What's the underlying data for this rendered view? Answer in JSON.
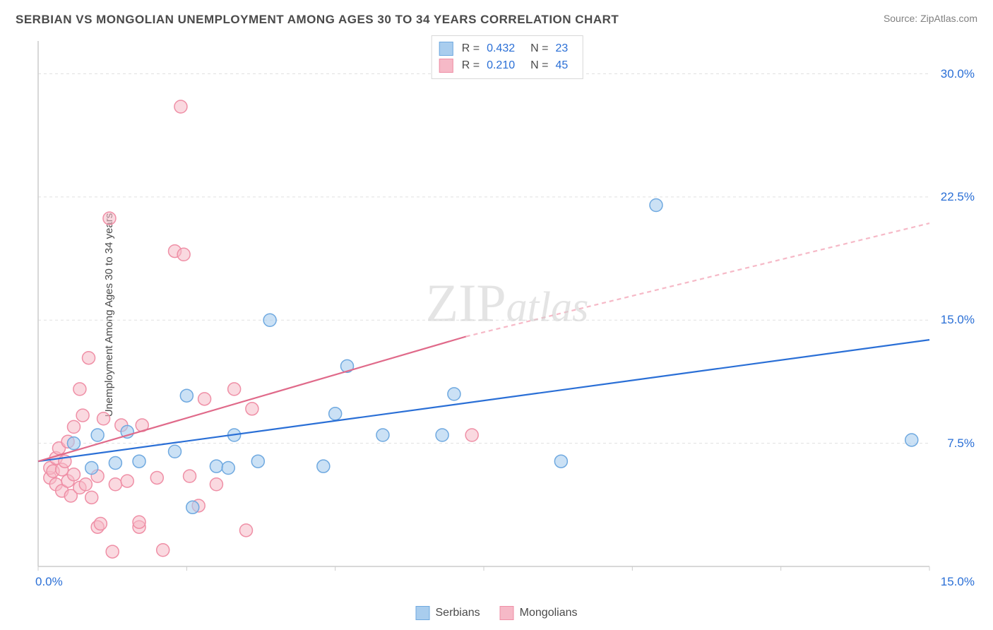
{
  "header": {
    "title": "SERBIAN VS MONGOLIAN UNEMPLOYMENT AMONG AGES 30 TO 34 YEARS CORRELATION CHART",
    "source": "Source: ZipAtlas.com"
  },
  "ylabel": "Unemployment Among Ages 30 to 34 years",
  "watermark": {
    "part1": "ZIP",
    "part2": "atlas"
  },
  "chart": {
    "type": "scatter",
    "xlim": [
      0,
      15
    ],
    "ylim": [
      0,
      32
    ],
    "x_ticks": [
      0,
      2.5,
      5,
      7.5,
      10,
      12.5,
      15
    ],
    "x_tick_labels_shown": {
      "0": "0.0%",
      "15": "15.0%"
    },
    "y_ticks": [
      7.5,
      15.0,
      22.5,
      30.0
    ],
    "y_tick_labels": [
      "7.5%",
      "15.0%",
      "22.5%",
      "30.0%"
    ],
    "grid_color": "#e0e0e0",
    "axis_color": "#cccccc",
    "background_color": "#ffffff",
    "marker_radius": 9,
    "marker_stroke_width": 1.5,
    "trend_line_width": 2.2,
    "series": [
      {
        "name": "Serbians",
        "fill": "#a9cdee",
        "stroke": "#6fa9e0",
        "fill_opacity": 0.6,
        "r_value": "0.432",
        "n_value": "23",
        "trend": {
          "x1": 0,
          "y1": 6.4,
          "x2": 15,
          "y2": 13.8,
          "dash": "none",
          "color": "#2a6fd6"
        },
        "points": [
          [
            0.6,
            7.5
          ],
          [
            0.9,
            6.0
          ],
          [
            1.0,
            8.0
          ],
          [
            1.3,
            6.3
          ],
          [
            1.5,
            8.2
          ],
          [
            1.7,
            6.4
          ],
          [
            2.3,
            7.0
          ],
          [
            2.5,
            10.4
          ],
          [
            2.6,
            3.6
          ],
          [
            3.0,
            6.1
          ],
          [
            3.2,
            6.0
          ],
          [
            3.3,
            8.0
          ],
          [
            3.7,
            6.4
          ],
          [
            3.9,
            15.0
          ],
          [
            4.8,
            6.1
          ],
          [
            5.0,
            9.3
          ],
          [
            5.2,
            12.2
          ],
          [
            5.8,
            8.0
          ],
          [
            6.8,
            8.0
          ],
          [
            7.0,
            10.5
          ],
          [
            8.8,
            6.4
          ],
          [
            10.4,
            22.0
          ],
          [
            14.7,
            7.7
          ]
        ]
      },
      {
        "name": "Mongolians",
        "fill": "#f6b9c7",
        "stroke": "#ef8fa6",
        "fill_opacity": 0.55,
        "r_value": "0.210",
        "n_value": "45",
        "trend_solid": {
          "x1": 0,
          "y1": 6.4,
          "x2": 7.2,
          "y2": 14.0,
          "color": "#e06a8a"
        },
        "trend_dash": {
          "x1": 7.2,
          "y1": 14.0,
          "x2": 15,
          "y2": 20.9,
          "color": "#f6b9c7"
        },
        "points": [
          [
            0.2,
            5.4
          ],
          [
            0.2,
            6.0
          ],
          [
            0.25,
            5.8
          ],
          [
            0.3,
            6.6
          ],
          [
            0.3,
            5.0
          ],
          [
            0.35,
            7.2
          ],
          [
            0.4,
            4.6
          ],
          [
            0.4,
            5.9
          ],
          [
            0.45,
            6.4
          ],
          [
            0.5,
            5.2
          ],
          [
            0.5,
            7.6
          ],
          [
            0.55,
            4.3
          ],
          [
            0.6,
            8.5
          ],
          [
            0.6,
            5.6
          ],
          [
            0.7,
            4.8
          ],
          [
            0.7,
            10.8
          ],
          [
            0.75,
            9.2
          ],
          [
            0.8,
            5.0
          ],
          [
            0.85,
            12.7
          ],
          [
            0.9,
            4.2
          ],
          [
            1.0,
            5.5
          ],
          [
            1.0,
            2.4
          ],
          [
            1.05,
            2.6
          ],
          [
            1.1,
            9.0
          ],
          [
            1.2,
            21.2
          ],
          [
            1.25,
            0.9
          ],
          [
            1.3,
            5.0
          ],
          [
            1.4,
            8.6
          ],
          [
            1.5,
            5.2
          ],
          [
            1.7,
            2.4
          ],
          [
            1.7,
            2.7
          ],
          [
            1.75,
            8.6
          ],
          [
            2.0,
            5.4
          ],
          [
            2.1,
            1.0
          ],
          [
            2.3,
            19.2
          ],
          [
            2.4,
            28.0
          ],
          [
            2.45,
            19.0
          ],
          [
            2.55,
            5.5
          ],
          [
            2.7,
            3.7
          ],
          [
            2.8,
            10.2
          ],
          [
            3.0,
            5.0
          ],
          [
            3.3,
            10.8
          ],
          [
            3.5,
            2.2
          ],
          [
            3.6,
            9.6
          ],
          [
            7.3,
            8.0
          ]
        ]
      }
    ]
  },
  "legend_bottom": [
    {
      "label": "Serbians",
      "fill": "#a9cdee",
      "stroke": "#6fa9e0"
    },
    {
      "label": "Mongolians",
      "fill": "#f6b9c7",
      "stroke": "#ef8fa6"
    }
  ],
  "axis_label_color": "#2a6fd6",
  "axis_label_fontsize": 17
}
